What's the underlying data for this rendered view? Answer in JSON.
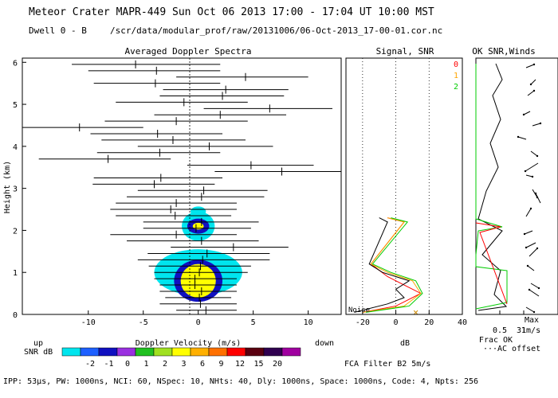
{
  "header": {
    "line1": "Meteor Crater  MAPR-449  Sun Oct 06 2013 17:00 - 17:04 UT 10:00 MST",
    "dwell": "Dwell  0 - B",
    "path": "/scr/data/modular_prof/raw/20131006/06-Oct-2013_17-00-01.cor.nc"
  },
  "footer": {
    "params": "IPP: 53μs, PW: 1000ns, NCI: 60, NSpec: 10, NHts: 40, Dly: 1000ns, Space: 1000ns, Code: 4, Npts: 256",
    "filter": "FCA Filter B2  5m/s"
  },
  "colorbar": {
    "label": "SNR dB",
    "up": "up",
    "down": "down",
    "colors": [
      "#00e5ee",
      "#1e60ff",
      "#1010c0",
      "#9a30e0",
      "#20c020",
      "#a0e020",
      "#ffff00",
      "#ffb000",
      "#ff7000",
      "#ff0000",
      "#5a0010",
      "#300050",
      "#a000a0"
    ],
    "ticks": [
      "-2",
      "-1",
      "0",
      "1",
      "2",
      "3",
      "6",
      "9",
      "12",
      "15",
      "20"
    ]
  },
  "chart_data": [
    {
      "type": "scatter",
      "title": "Averaged Doppler Spectra",
      "xlabel": "Doppler Velocity (m/s)",
      "ylabel": "Height (km)",
      "xlim": [
        -16,
        13
      ],
      "ylim": [
        0,
        6.1
      ],
      "xticks": [
        "-10",
        "-5",
        "0",
        "5",
        "10"
      ],
      "yticks": [
        "0",
        "1",
        "2",
        "3",
        "4",
        "5",
        "6"
      ],
      "wind_bars": [
        {
          "h": 5.95,
          "v": -5.7,
          "lo": -11.5,
          "hi": 2.0
        },
        {
          "h": 5.8,
          "v": -3.8,
          "lo": -10.0,
          "hi": 2.0
        },
        {
          "h": 5.65,
          "v": 4.3,
          "lo": -2.0,
          "hi": 10.0
        },
        {
          "h": 5.5,
          "v": -3.9,
          "lo": -9.5,
          "hi": 2.0
        },
        {
          "h": 5.35,
          "v": 2.5,
          "lo": -3.2,
          "hi": 8.2
        },
        {
          "h": 5.2,
          "v": 2.2,
          "lo": -3.5,
          "hi": 7.8
        },
        {
          "h": 5.05,
          "v": -1.3,
          "lo": -7.5,
          "hi": 4.5
        },
        {
          "h": 4.9,
          "v": 6.5,
          "lo": 0.5,
          "hi": 12.2
        },
        {
          "h": 4.75,
          "v": 2.0,
          "lo": -4.0,
          "hi": 8.0
        },
        {
          "h": 4.6,
          "v": -2.0,
          "lo": -8.5,
          "hi": 4.5
        },
        {
          "h": 4.45,
          "v": -10.8,
          "lo": -16.0,
          "hi": -5.0
        },
        {
          "h": 4.3,
          "v": -3.7,
          "lo": -9.8,
          "hi": 2.2
        },
        {
          "h": 4.15,
          "v": -2.3,
          "lo": -8.8,
          "hi": 4.3
        },
        {
          "h": 4.0,
          "v": 1.0,
          "lo": -5.5,
          "hi": 6.8
        },
        {
          "h": 3.85,
          "v": -3.5,
          "lo": -9.2,
          "hi": 2.0
        },
        {
          "h": 3.7,
          "v": -8.2,
          "lo": -14.5,
          "hi": -2.5
        },
        {
          "h": 3.55,
          "v": 4.8,
          "lo": -1.0,
          "hi": 10.5
        },
        {
          "h": 3.4,
          "v": 7.6,
          "lo": 1.5,
          "hi": 13.0
        },
        {
          "h": 3.25,
          "v": -3.4,
          "lo": -9.5,
          "hi": 2.2
        },
        {
          "h": 3.1,
          "v": -4.0,
          "lo": -9.6,
          "hi": 1.5
        },
        {
          "h": 2.95,
          "v": 0.5,
          "lo": -5.5,
          "hi": 6.3
        },
        {
          "h": 2.8,
          "v": 0.3,
          "lo": -6.5,
          "hi": 6.0
        },
        {
          "h": 2.65,
          "v": -2.0,
          "lo": -7.5,
          "hi": 3.5
        },
        {
          "h": 2.5,
          "v": -2.5,
          "lo": -8.0,
          "hi": 3.5
        },
        {
          "h": 2.35,
          "v": -2.1,
          "lo": -7.5,
          "hi": 3.0
        },
        {
          "h": 2.2,
          "v": 0.3,
          "lo": -5.0,
          "hi": 5.5
        },
        {
          "h": 2.05,
          "v": -0.2,
          "lo": -5.0,
          "hi": 4.8
        },
        {
          "h": 1.9,
          "v": -2.0,
          "lo": -8.0,
          "hi": 3.5
        },
        {
          "h": 1.75,
          "v": 0.3,
          "lo": -6.5,
          "hi": 5.5
        },
        {
          "h": 1.6,
          "v": 3.2,
          "lo": -2.5,
          "hi": 8.2
        },
        {
          "h": 1.45,
          "v": 0.8,
          "lo": -4.6,
          "hi": 6.5
        },
        {
          "h": 1.3,
          "v": 0.4,
          "lo": -5.5,
          "hi": 6.5
        },
        {
          "h": 1.15,
          "v": 0.2,
          "lo": -4.5,
          "hi": 4.8
        },
        {
          "h": 1.0,
          "v": 0.1,
          "lo": -4.0,
          "hi": 4.5
        },
        {
          "h": 0.85,
          "v": -0.3,
          "lo": -4.0,
          "hi": 3.5
        },
        {
          "h": 0.7,
          "v": -0.3,
          "lo": -3.5,
          "hi": 3.5
        },
        {
          "h": 0.55,
          "v": 0.3,
          "lo": -3.5,
          "hi": 3.5
        },
        {
          "h": 0.4,
          "v": 0.1,
          "lo": -3.0,
          "hi": 3.0
        },
        {
          "h": 0.25,
          "v": 0.2,
          "lo": -3.5,
          "hi": 3.5
        },
        {
          "h": 0.1,
          "v": 0.7,
          "lo": -2.0,
          "hi": 3.5
        }
      ],
      "snr_blobs": [
        {
          "h": 2.1,
          "v": 0,
          "dh": 0.35,
          "dv": 1.5,
          "level": 0
        },
        {
          "h": 2.1,
          "v": 0,
          "dh": 0.18,
          "dv": 1.0,
          "level": 2
        },
        {
          "h": 2.1,
          "v": 0,
          "dh": 0.08,
          "dv": 0.5,
          "level": 6
        },
        {
          "h": 1.0,
          "v": 0,
          "dh": 0.55,
          "dv": 4.0,
          "level": 0
        },
        {
          "h": 0.8,
          "v": 0,
          "dh": 0.5,
          "dv": 2.2,
          "level": 2
        },
        {
          "h": 0.8,
          "v": 0,
          "dh": 0.4,
          "dv": 1.6,
          "level": 6
        },
        {
          "h": 2.45,
          "v": 0,
          "dh": 0.12,
          "dv": 0.7,
          "level": 0
        }
      ]
    },
    {
      "type": "line",
      "title": "Signal, SNR",
      "xlabel": "dB",
      "xlim": [
        -30,
        40
      ],
      "xticks": [
        "-20",
        "0",
        "20",
        "40"
      ],
      "ylim": [
        0,
        6.1
      ],
      "legend": [
        "0",
        "1",
        "2"
      ],
      "legend_colors": [
        "#ff0000",
        "#ffa500",
        "#00cc00"
      ],
      "noise_label": "Noise",
      "series": [
        {
          "name": "signal-0",
          "color": "#ff0000",
          "points": [
            [
              -5,
              2.3
            ],
            [
              0,
              2.25
            ],
            [
              5,
              2.2
            ],
            [
              -15,
              1.2
            ],
            [
              -5,
              0.9
            ],
            [
              5,
              0.7
            ],
            [
              10,
              0.6
            ],
            [
              15,
              0.5
            ],
            [
              5,
              0.3
            ],
            [
              0,
              0.2
            ],
            [
              -20,
              0.05
            ]
          ]
        },
        {
          "name": "signal-1",
          "color": "#ffa500",
          "points": [
            [
              -5,
              2.3
            ],
            [
              5,
              2.2
            ],
            [
              -15,
              1.2
            ],
            [
              -5,
              1.0
            ],
            [
              10,
              0.8
            ],
            [
              15,
              0.5
            ],
            [
              5,
              0.2
            ],
            [
              -20,
              0.05
            ]
          ]
        },
        {
          "name": "signal-2",
          "color": "#00cc00",
          "points": [
            [
              -3,
              2.3
            ],
            [
              7,
              2.2
            ],
            [
              -14,
              1.2
            ],
            [
              -3,
              1.0
            ],
            [
              12,
              0.8
            ],
            [
              16,
              0.5
            ],
            [
              8,
              0.2
            ],
            [
              -18,
              0.05
            ]
          ]
        },
        {
          "name": "snr",
          "color": "#000000",
          "points": [
            [
              -10,
              2.3
            ],
            [
              -5,
              2.2
            ],
            [
              -16,
              1.2
            ],
            [
              -8,
              1.0
            ],
            [
              0,
              0.9
            ],
            [
              8,
              0.8
            ],
            [
              0,
              0.6
            ],
            [
              5,
              0.4
            ],
            [
              -5,
              0.25
            ],
            [
              -25,
              0.05
            ]
          ]
        }
      ]
    },
    {
      "type": "line",
      "title": "OK SNR,Winds",
      "xlabel": "Frac OK",
      "xlabel2": "AC offset",
      "xticks": [
        "0.5",
        "1"
      ],
      "xlim": [
        0,
        1
      ],
      "ylim": [
        0,
        6.1
      ],
      "wind_max_label": "Max",
      "wind_max_value": "31m/s"
    }
  ]
}
